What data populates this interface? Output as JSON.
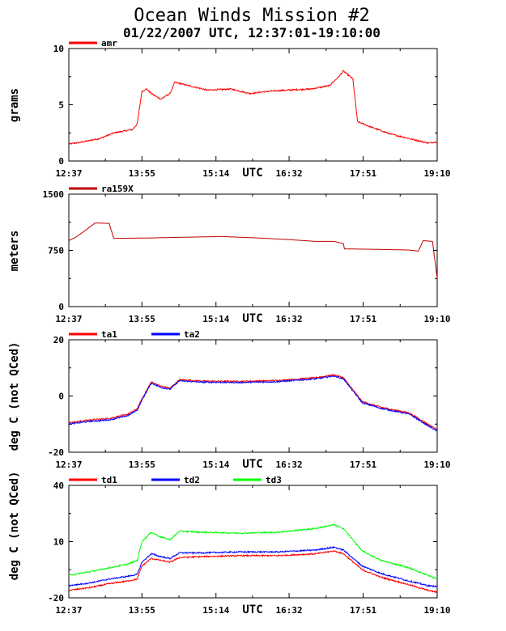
{
  "header": {
    "title": "Ocean Winds Mission #2",
    "subtitle": "01/22/2007  UTC, 12:37:01-19:10:00"
  },
  "chart_data": [
    {
      "type": "line",
      "ylabel": "grams",
      "xlabel": "UTC",
      "x_ticks": [
        "12:37",
        "13:55",
        "15:14",
        "16:32",
        "17:51",
        "19:10"
      ],
      "ylim": [
        0,
        10
      ],
      "y_ticks": [
        0,
        5,
        10
      ],
      "grid": false,
      "legend_position": "top-left",
      "series": [
        {
          "name": "amr",
          "color": "#ff0000",
          "x": [
            "12:37",
            "12:52",
            "13:10",
            "13:25",
            "13:45",
            "13:50",
            "13:55",
            "14:00",
            "14:05",
            "14:15",
            "14:25",
            "14:30",
            "14:45",
            "15:05",
            "15:30",
            "15:50",
            "16:10",
            "16:30",
            "16:55",
            "17:15",
            "17:25",
            "17:30",
            "17:40",
            "17:45",
            "18:00",
            "18:20",
            "18:40",
            "19:00",
            "19:10"
          ],
          "values": [
            1.5,
            1.7,
            2.0,
            2.5,
            2.8,
            3.3,
            6.2,
            6.4,
            6.0,
            5.5,
            6.0,
            7.0,
            6.7,
            6.3,
            6.4,
            6.0,
            6.2,
            6.3,
            6.4,
            6.7,
            7.5,
            8.0,
            7.3,
            3.5,
            3.0,
            2.4,
            2.0,
            1.6,
            1.7
          ]
        }
      ]
    },
    {
      "type": "line",
      "ylabel": "meters",
      "xlabel": "UTC",
      "x_ticks": [
        "12:37",
        "13:55",
        "15:14",
        "16:32",
        "17:51",
        "19:10"
      ],
      "ylim": [
        0,
        1500
      ],
      "y_ticks": [
        0,
        750,
        1500
      ],
      "grid": false,
      "legend_position": "top-left",
      "series": [
        {
          "name": "ra159X",
          "color": "#c00000",
          "x": [
            "12:37",
            "12:45",
            "12:55",
            "13:05",
            "13:20",
            "13:25",
            "14:00",
            "14:40",
            "15:20",
            "16:00",
            "16:30",
            "17:00",
            "17:20",
            "17:30",
            "17:31",
            "18:00",
            "18:40",
            "18:50",
            "18:55",
            "19:05",
            "19:10"
          ],
          "values": [
            880,
            930,
            1020,
            1115,
            1110,
            910,
            915,
            925,
            935,
            915,
            895,
            870,
            870,
            840,
            770,
            765,
            755,
            740,
            880,
            870,
            380
          ]
        }
      ]
    },
    {
      "type": "line",
      "ylabel": "deg C (not QCed)",
      "xlabel": "UTC",
      "x_ticks": [
        "12:37",
        "13:55",
        "15:14",
        "16:32",
        "17:51",
        "19:10"
      ],
      "ylim": [
        -20,
        20
      ],
      "y_ticks": [
        -20,
        0,
        20
      ],
      "grid": false,
      "legend_position": "top-left",
      "series": [
        {
          "name": "ta1",
          "color": "#ff0000",
          "x": [
            "12:37",
            "13:00",
            "13:20",
            "13:40",
            "13:50",
            "13:55",
            "14:05",
            "14:15",
            "14:25",
            "14:35",
            "15:00",
            "15:40",
            "16:20",
            "17:00",
            "17:20",
            "17:30",
            "17:50",
            "18:10",
            "18:40",
            "19:00",
            "19:10"
          ],
          "values": [
            -9.5,
            -8.5,
            -8.0,
            -6.5,
            -4.5,
            -1.0,
            5.0,
            3.5,
            2.8,
            5.8,
            5.3,
            5.2,
            5.5,
            6.5,
            7.5,
            6.5,
            -2.0,
            -4.0,
            -6.0,
            -10.0,
            -12.0
          ]
        },
        {
          "name": "ta2",
          "color": "#0000ff",
          "x": [
            "12:37",
            "13:00",
            "13:20",
            "13:40",
            "13:50",
            "13:55",
            "14:05",
            "14:15",
            "14:25",
            "14:35",
            "15:00",
            "15:40",
            "16:20",
            "17:00",
            "17:20",
            "17:30",
            "17:50",
            "18:10",
            "18:40",
            "19:00",
            "19:10"
          ],
          "values": [
            -10.0,
            -9.0,
            -8.5,
            -7.0,
            -5.0,
            -1.5,
            4.6,
            3.1,
            2.4,
            5.4,
            4.9,
            4.8,
            5.1,
            6.1,
            7.1,
            6.1,
            -2.4,
            -4.4,
            -6.4,
            -10.5,
            -12.5
          ]
        }
      ]
    },
    {
      "type": "line",
      "ylabel": "deg C (not QCed)",
      "xlabel": "UTC",
      "x_ticks": [
        "12:37",
        "13:55",
        "15:14",
        "16:32",
        "17:51",
        "19:10"
      ],
      "ylim": [
        -20,
        40
      ],
      "y_ticks": [
        -20,
        10,
        40
      ],
      "grid": false,
      "legend_position": "top-left",
      "series": [
        {
          "name": "td1",
          "color": "#ff0000",
          "x": [
            "12:37",
            "13:00",
            "13:20",
            "13:40",
            "13:50",
            "13:55",
            "14:05",
            "14:15",
            "14:25",
            "14:35",
            "15:00",
            "15:40",
            "16:20",
            "17:00",
            "17:20",
            "17:30",
            "17:50",
            "18:10",
            "18:40",
            "19:00",
            "19:10"
          ],
          "values": [
            -16.0,
            -14.5,
            -12.5,
            -11.0,
            -10.0,
            -3.0,
            1.0,
            0.0,
            -1.0,
            1.5,
            2.0,
            2.5,
            2.5,
            3.5,
            5.0,
            3.5,
            -5.0,
            -9.0,
            -13.0,
            -16.0,
            -17.0
          ]
        },
        {
          "name": "td2",
          "color": "#0000ff",
          "x": [
            "12:37",
            "13:00",
            "13:20",
            "13:40",
            "13:50",
            "13:55",
            "14:05",
            "14:15",
            "14:25",
            "14:35",
            "15:00",
            "15:40",
            "16:20",
            "17:00",
            "17:20",
            "17:30",
            "17:50",
            "18:10",
            "18:40",
            "19:00",
            "19:10"
          ],
          "values": [
            -13.5,
            -12.0,
            -10.0,
            -8.5,
            -7.5,
            -1.0,
            3.5,
            2.0,
            1.0,
            4.0,
            4.0,
            4.5,
            4.5,
            5.5,
            7.0,
            5.5,
            -3.0,
            -7.0,
            -11.0,
            -13.5,
            -14.0
          ]
        },
        {
          "name": "td3",
          "color": "#00ff00",
          "x": [
            "12:37",
            "13:00",
            "13:20",
            "13:40",
            "13:50",
            "13:55",
            "14:05",
            "14:15",
            "14:25",
            "14:35",
            "15:00",
            "15:40",
            "16:20",
            "17:00",
            "17:20",
            "17:30",
            "17:50",
            "18:10",
            "18:40",
            "19:00",
            "19:10"
          ],
          "values": [
            -8.0,
            -6.0,
            -4.0,
            -2.0,
            0.0,
            10.0,
            15.0,
            12.5,
            11.0,
            15.5,
            15.0,
            14.5,
            15.0,
            17.0,
            19.0,
            17.0,
            5.0,
            0.0,
            -4.0,
            -8.0,
            -10.0
          ]
        }
      ]
    }
  ]
}
